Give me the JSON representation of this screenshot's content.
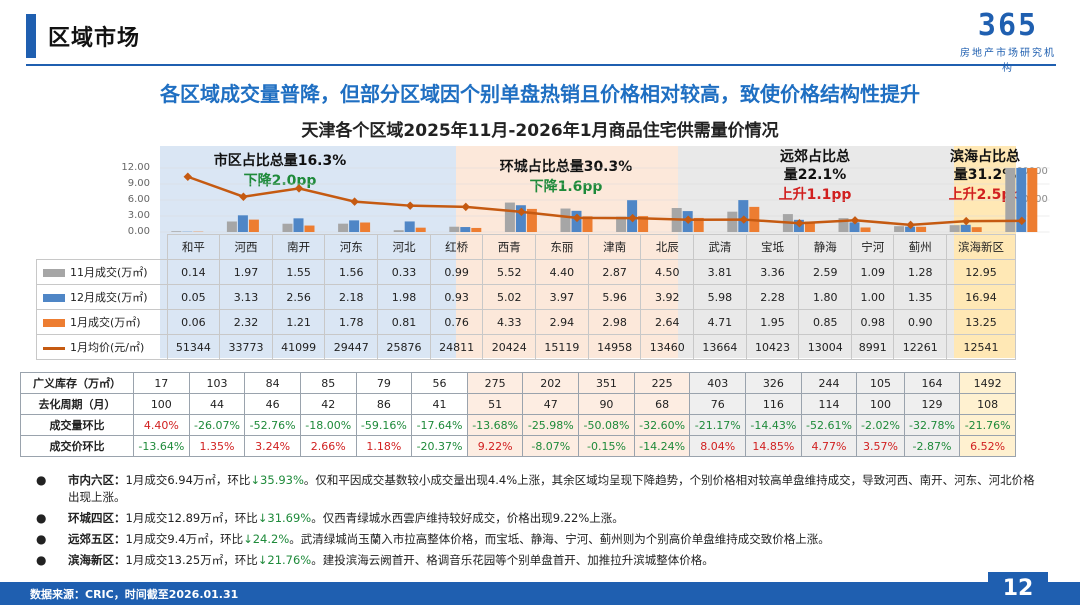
{
  "header": {
    "title": "区域市场",
    "logo_number": "365",
    "logo_text": "房地产市场研究机构"
  },
  "headline": "各区域成交量普降，但部分区域因个别单盘热销且价格相对较高，致使价格结构性提升",
  "subtitle": "天津各个区域2025年11月-2026年1月商品住宅供需量价情况",
  "regions": [
    {
      "label": "市区占比总量16.3%",
      "change": "下降2.0pp",
      "color": "#1e8a3a"
    },
    {
      "label": "环城占比总量30.3%",
      "change": "下降1.6pp",
      "color": "#1e8a3a"
    },
    {
      "label_line1": "远郊占比总",
      "label_line2": "量22.1%",
      "change": "上升1.1pp",
      "color": "#d12020"
    },
    {
      "label_line1": "滨海占比总",
      "label_line2": "量31.2%",
      "change": "上升2.5pp",
      "color": "#d12020"
    }
  ],
  "legend": {
    "nov": "11月成交(万㎡)",
    "dec": "12月成交(万㎡)",
    "jan": "1月成交(万㎡)",
    "price": "1月均价(元/㎡)"
  },
  "chart_data": {
    "type": "bar",
    "categories": [
      "和平",
      "河西",
      "南开",
      "河东",
      "河北",
      "红桥",
      "西青",
      "东丽",
      "津南",
      "北辰",
      "武清",
      "宝坻",
      "静海",
      "宁河",
      "蓟州",
      "滨海新区"
    ],
    "series": [
      {
        "name": "11月成交(万㎡)",
        "values": [
          0.14,
          1.97,
          1.55,
          1.56,
          0.33,
          0.99,
          5.52,
          4.4,
          2.87,
          4.5,
          3.81,
          3.36,
          2.59,
          1.09,
          1.28,
          12.95
        ],
        "color": "#a6a6a6"
      },
      {
        "name": "12月成交(万㎡)",
        "values": [
          0.05,
          3.13,
          2.56,
          2.18,
          1.98,
          0.93,
          5.02,
          3.97,
          5.96,
          3.92,
          5.98,
          2.28,
          1.8,
          1.0,
          1.35,
          16.94
        ],
        "color": "#4f86c6"
      },
      {
        "name": "1月成交(万㎡)",
        "values": [
          0.06,
          2.32,
          1.21,
          1.78,
          0.81,
          0.76,
          4.33,
          2.94,
          2.98,
          2.64,
          4.71,
          1.95,
          0.85,
          0.98,
          0.9,
          13.25
        ],
        "color": "#ed7d31"
      },
      {
        "name": "1月均价(元/㎡)",
        "type": "line",
        "values": [
          51344,
          33773,
          41099,
          29447,
          25876,
          24811,
          20424,
          15119,
          14958,
          13460,
          13664,
          10423,
          13004,
          8991,
          12261,
          12541
        ],
        "color": "#c55a11"
      }
    ],
    "yticks": [
      "12.00",
      "9.00",
      "6.00",
      "3.00",
      "0.00"
    ],
    "ylim": [
      0,
      12
    ],
    "y2ticks": [
      "60000",
      "50000"
    ],
    "y2lim": [
      0,
      60000
    ]
  },
  "table2": {
    "rows": [
      {
        "label": "广义库存（万㎡）",
        "values": [
          "17",
          "103",
          "84",
          "85",
          "79",
          "56",
          "275",
          "202",
          "351",
          "225",
          "403",
          "326",
          "244",
          "105",
          "164",
          "1492"
        ]
      },
      {
        "label": "去化周期（月）",
        "values": [
          "100",
          "44",
          "46",
          "42",
          "86",
          "41",
          "51",
          "47",
          "90",
          "68",
          "76",
          "116",
          "114",
          "100",
          "129",
          "108"
        ]
      },
      {
        "label": "成交量环比",
        "values": [
          "4.40%",
          "-26.07%",
          "-52.76%",
          "-18.00%",
          "-59.16%",
          "-17.64%",
          "-13.68%",
          "-25.98%",
          "-50.08%",
          "-32.60%",
          "-21.17%",
          "-14.43%",
          "-52.61%",
          "-2.02%",
          "-32.78%",
          "-21.76%"
        ]
      },
      {
        "label": "成交价环比",
        "values": [
          "-13.64%",
          "1.35%",
          "3.24%",
          "2.66%",
          "1.18%",
          "-20.37%",
          "9.22%",
          "-8.07%",
          "-0.15%",
          "-14.24%",
          "8.04%",
          "14.85%",
          "4.77%",
          "3.57%",
          "-2.87%",
          "6.52%"
        ]
      }
    ]
  },
  "bullets": [
    {
      "name": "市内六区：",
      "parts": [
        {
          "t": "1月成交6.94万㎡，环比",
          "c": ""
        },
        {
          "t": "↓35.93%",
          "c": "neg"
        },
        {
          "t": "。仅和平因成交基数较小成交量出现4.4%上涨，其余区域均呈现下降趋势，个别价格相对较高单盘维持成交，导致河西、南开、河东、河北价格出现上涨。",
          "c": ""
        }
      ]
    },
    {
      "name": "环城四区：",
      "parts": [
        {
          "t": "1月成交12.89万㎡，环比",
          "c": ""
        },
        {
          "t": "↓31.69%",
          "c": "neg"
        },
        {
          "t": "。仅西青绿城水西雲庐维持较好成交，价格出现9.22%上涨。",
          "c": ""
        }
      ]
    },
    {
      "name": "远郊五区：",
      "parts": [
        {
          "t": "1月成交9.4万㎡，环比",
          "c": ""
        },
        {
          "t": "↓24.2%",
          "c": "neg"
        },
        {
          "t": "。武清绿城尚玉蘭入市拉高整体价格，而宝坻、静海、宁河、蓟州则为个别高价单盘维持成交致价格上涨。",
          "c": ""
        }
      ]
    },
    {
      "name": "滨海新区：",
      "parts": [
        {
          "t": "1月成交13.25万㎡，环比",
          "c": ""
        },
        {
          "t": "↓21.76%",
          "c": "neg"
        },
        {
          "t": "。建投滨海云阙首开、格调音乐花园等个别单盘首开、加推拉升滨城整体价格。",
          "c": ""
        }
      ]
    }
  ],
  "footer": {
    "source": "数据来源：CRIC，时间截至2026.01.31",
    "page": "12"
  }
}
